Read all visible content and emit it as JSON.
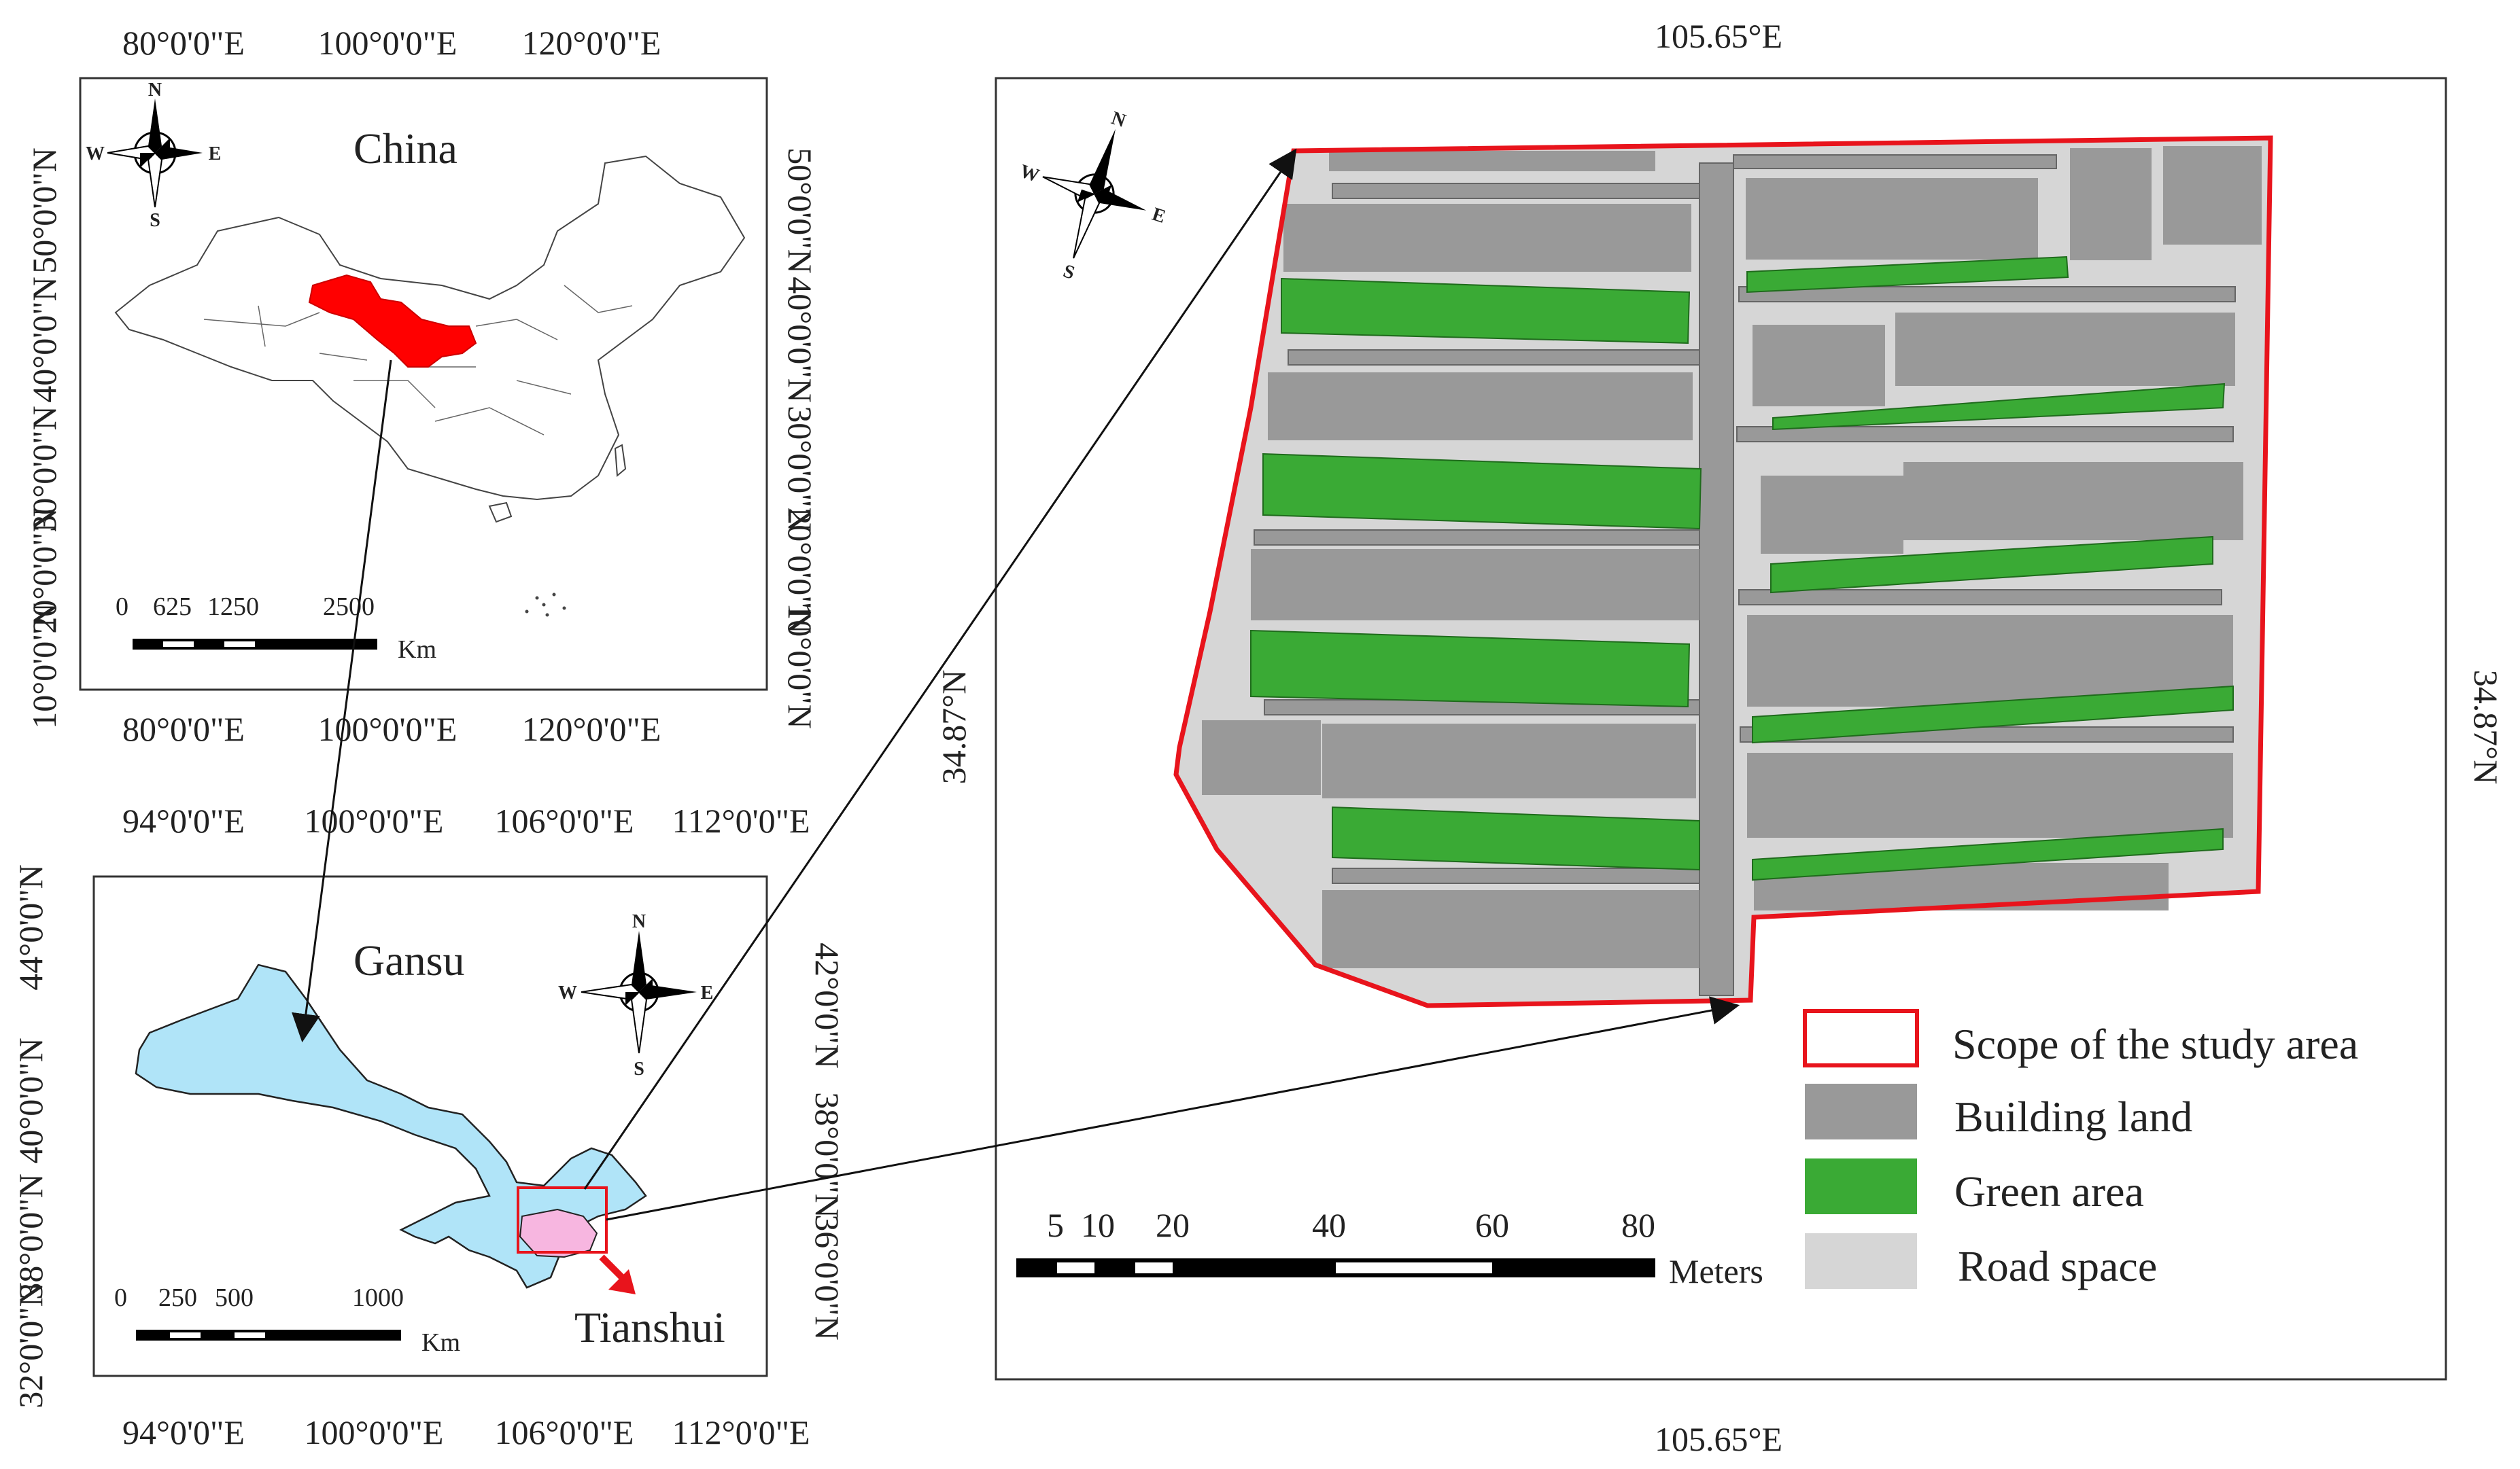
{
  "china_panel": {
    "title": "China",
    "top_ticks": [
      "80°0'0\"E",
      "100°0'0\"E",
      "120°0'0\"E"
    ],
    "bottom_ticks": [
      "80°0'0\"E",
      "100°0'0\"E",
      "120°0'0\"E"
    ],
    "left_ticks": [
      "50°0'0\"N",
      "40°0'0\"N",
      "30°0'0\"N",
      "20°0'0\"N",
      "10°0'0\"N"
    ],
    "right_ticks": [
      "50°0'0\"N",
      "40°0'0\"N",
      "30°0'0\"N",
      "20°0'0\"N",
      "10°0'0\"N"
    ],
    "scale_labels": [
      "0",
      "625",
      "1250",
      "2500"
    ],
    "scale_unit": "Km",
    "highlight_color": "#ff0000",
    "compass": {
      "n": "N",
      "s": "S",
      "e": "E",
      "w": "W"
    }
  },
  "gansu_panel": {
    "title": "Gansu",
    "sub_label": "Tianshui",
    "top_ticks": [
      "94°0'0\"E",
      "100°0'0\"E",
      "106°0'0\"E",
      "112°0'0\"E"
    ],
    "bottom_ticks": [
      "94°0'0\"E",
      "100°0'0\"E",
      "106°0'0\"E",
      "112°0'0\"E"
    ],
    "left_ticks": [
      "44°0'0\"N",
      "40°0'0\"N",
      "38°0'0\"N",
      "32°0'0\"N"
    ],
    "right_ticks": [
      "42°0'0\"N",
      "38°0'0\"N",
      "36°0'0\"N"
    ],
    "scale_labels": [
      "0",
      "250",
      "500",
      "1000"
    ],
    "scale_unit": "Km",
    "province_fill": "#b0e4f8",
    "tianshui_fill": "#f7b6e0",
    "compass": {
      "n": "N",
      "s": "S",
      "e": "E",
      "w": "W"
    }
  },
  "site_panel": {
    "top_tick": "105.65°E",
    "bottom_tick": "105.65°E",
    "left_tick": "34.87°N",
    "right_tick": "34.87°N",
    "scale_labels": [
      "5",
      "10",
      "20",
      "40",
      "60",
      "80"
    ],
    "scale_unit": "Meters",
    "compass": {
      "n": "N",
      "s": "S",
      "e": "E",
      "w": "W"
    }
  },
  "legend": {
    "items": [
      {
        "label": "Scope of the study area",
        "color": "#e8141c",
        "kind": "outline"
      },
      {
        "label": "Building land",
        "color": "#999999",
        "kind": "fill"
      },
      {
        "label": "Green area",
        "color": "#3aaa35",
        "kind": "fill"
      },
      {
        "label": "Road space",
        "color": "#d6d6d6",
        "kind": "fill"
      }
    ]
  }
}
